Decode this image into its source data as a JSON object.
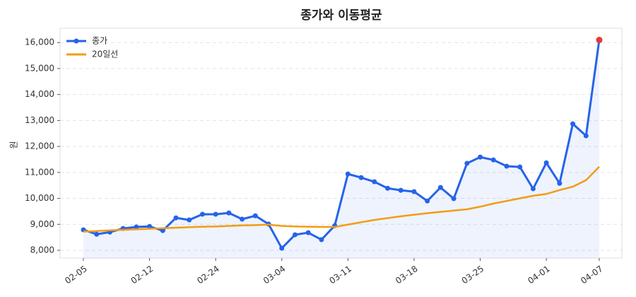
{
  "chart_data": {
    "type": "line",
    "title": "종가와 이동평균",
    "y_label": "원",
    "categories": [
      "02-05",
      null,
      null,
      null,
      null,
      "02-12",
      null,
      null,
      null,
      null,
      "02-24",
      null,
      null,
      null,
      null,
      "03-04",
      null,
      null,
      null,
      null,
      "03-11",
      null,
      null,
      null,
      null,
      "03-18",
      null,
      null,
      null,
      null,
      "03-25",
      null,
      null,
      null,
      null,
      "04-01",
      null,
      null,
      null,
      "04-07"
    ],
    "series": [
      {
        "name": "종가",
        "color": "#2563eb",
        "markers": true,
        "fill": true,
        "last_point_color": "#e53935",
        "values": [
          8790,
          8620,
          8700,
          8840,
          8900,
          8920,
          8760,
          9250,
          9170,
          9390,
          9390,
          9440,
          9200,
          9330,
          9010,
          8080,
          8600,
          8680,
          8410,
          8950,
          10940,
          10800,
          10640,
          10390,
          10310,
          10260,
          9900,
          10420,
          9990,
          11350,
          11590,
          11480,
          11240,
          11210,
          10370,
          11370,
          10580,
          12870,
          12410,
          16100
        ]
      },
      {
        "name": "20일선",
        "color": "#f39c12",
        "markers": false,
        "fill": false,
        "values": [
          8720,
          8740,
          8770,
          8790,
          8810,
          8830,
          8850,
          8870,
          8890,
          8910,
          8920,
          8940,
          8960,
          8970,
          8990,
          8940,
          8920,
          8910,
          8900,
          8900,
          8990,
          9080,
          9170,
          9240,
          9310,
          9370,
          9430,
          9480,
          9530,
          9580,
          9680,
          9800,
          9900,
          10000,
          10100,
          10170,
          10320,
          10450,
          10700,
          11220
        ]
      }
    ],
    "ylim": [
      7700,
      16550
    ],
    "yticks": [
      {
        "value": 8000,
        "label": "8,000"
      },
      {
        "value": 9000,
        "label": "9,000"
      },
      {
        "value": 10000,
        "label": "10,000"
      },
      {
        "value": 11000,
        "label": "11,000"
      },
      {
        "value": 12000,
        "label": "12,000"
      },
      {
        "value": 13000,
        "label": "13,000"
      },
      {
        "value": 14000,
        "label": "14,000"
      },
      {
        "value": 15000,
        "label": "15,000"
      },
      {
        "value": 16000,
        "label": "16,000"
      }
    ],
    "grid": true,
    "legend": "upper-left"
  }
}
